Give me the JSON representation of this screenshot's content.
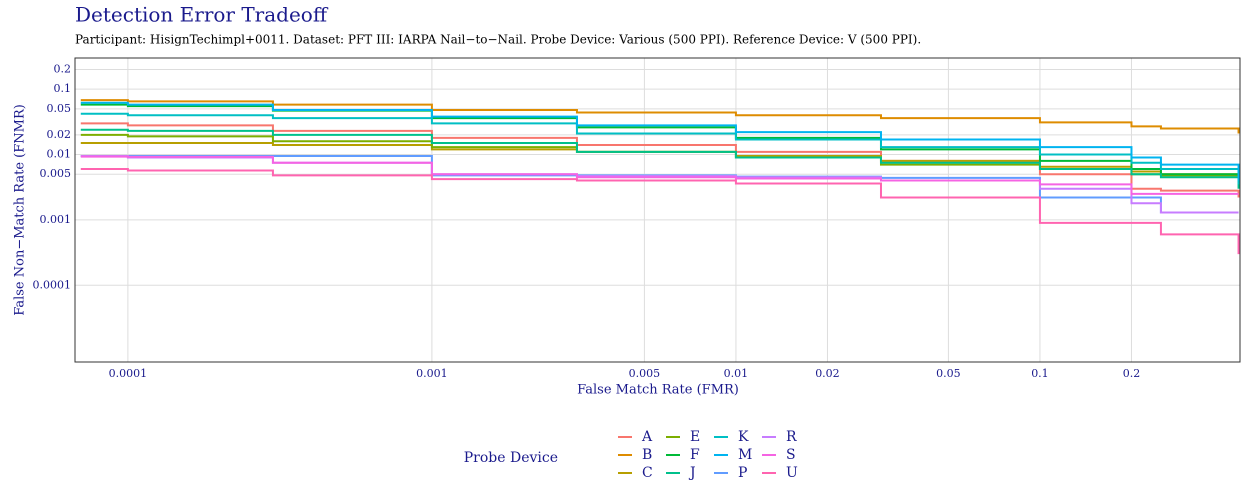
{
  "chart_data": {
    "type": "line",
    "title": "Detection Error Tradeoff",
    "subtitle": "Participant: HisignTechimpl+0011. Dataset: PFT III: IARPA Nail−to−Nail. Probe Device: Various (500 PPI). Reference Device: V (500 PPI).",
    "x_label": "False Match Rate (FMR)",
    "y_label": "False Non−Match Rate (FNMR)",
    "legend_title": "Probe Device",
    "log_x": true,
    "log_y": true,
    "grid": true,
    "legend_position": "bottom",
    "xlim": [
      6.7e-05,
      0.455
    ],
    "ylim": [
      6.7e-06,
      0.3
    ],
    "xticks": [
      0.0001,
      0.001,
      0.005,
      0.01,
      0.02,
      0.05,
      0.1,
      0.2
    ],
    "yticks": [
      0.2,
      0.1,
      0.05,
      0.02,
      0.01,
      0.005,
      0.001,
      0.0001
    ],
    "x": [
      7e-05,
      0.0001,
      0.0003,
      0.001,
      0.003,
      0.01,
      0.03,
      0.1,
      0.2,
      0.25,
      0.45
    ],
    "series": [
      {
        "name": "A",
        "color": "#F8766D",
        "values": [
          0.03,
          0.028,
          0.023,
          0.018,
          0.014,
          0.011,
          0.008,
          0.005,
          0.003,
          0.0028,
          0.0022
        ]
      },
      {
        "name": "B",
        "color": "#DE8C00",
        "values": [
          0.068,
          0.065,
          0.058,
          0.048,
          0.044,
          0.04,
          0.036,
          0.031,
          0.027,
          0.025,
          0.021
        ]
      },
      {
        "name": "C",
        "color": "#B79F00",
        "values": [
          0.015,
          0.015,
          0.014,
          0.012,
          0.011,
          0.0095,
          0.008,
          0.0065,
          0.0055,
          0.005,
          0.0045
        ]
      },
      {
        "name": "E",
        "color": "#7CAE00",
        "values": [
          0.02,
          0.019,
          0.016,
          0.013,
          0.011,
          0.009,
          0.007,
          0.006,
          0.005,
          0.0048,
          0.0045
        ]
      },
      {
        "name": "F",
        "color": "#00BA38",
        "values": [
          0.058,
          0.055,
          0.047,
          0.036,
          0.026,
          0.018,
          0.012,
          0.008,
          0.006,
          0.005,
          0.0045
        ]
      },
      {
        "name": "J",
        "color": "#00C08B",
        "values": [
          0.024,
          0.023,
          0.02,
          0.015,
          0.011,
          0.009,
          0.0075,
          0.006,
          0.005,
          0.0045,
          0.003
        ]
      },
      {
        "name": "K",
        "color": "#00BFC4",
        "values": [
          0.042,
          0.04,
          0.036,
          0.03,
          0.021,
          0.017,
          0.013,
          0.01,
          0.0075,
          0.006,
          0.0035
        ]
      },
      {
        "name": "M",
        "color": "#00B4F0",
        "values": [
          0.062,
          0.058,
          0.048,
          0.038,
          0.028,
          0.022,
          0.017,
          0.013,
          0.009,
          0.007,
          0.004
        ]
      },
      {
        "name": "P",
        "color": "#619CFF",
        "values": [
          0.0095,
          0.0095,
          0.0095,
          0.0048,
          0.0048,
          0.0046,
          0.0044,
          0.0022,
          0.0022,
          0.0013,
          0.0013
        ]
      },
      {
        "name": "R",
        "color": "#C77CFF",
        "values": [
          0.0095,
          0.009,
          0.0075,
          0.005,
          0.0047,
          0.0045,
          0.004,
          0.003,
          0.0018,
          0.0013,
          0.0013
        ]
      },
      {
        "name": "S",
        "color": "#F564E3",
        "values": [
          0.0093,
          0.0092,
          0.0075,
          0.005,
          0.0045,
          0.0043,
          0.004,
          0.0035,
          0.0025,
          0.0025,
          0.0025
        ]
      },
      {
        "name": "U",
        "color": "#FF64B0",
        "values": [
          0.006,
          0.0057,
          0.0048,
          0.0042,
          0.004,
          0.0036,
          0.0022,
          0.0009,
          0.0009,
          0.0006,
          0.0003
        ]
      }
    ]
  }
}
